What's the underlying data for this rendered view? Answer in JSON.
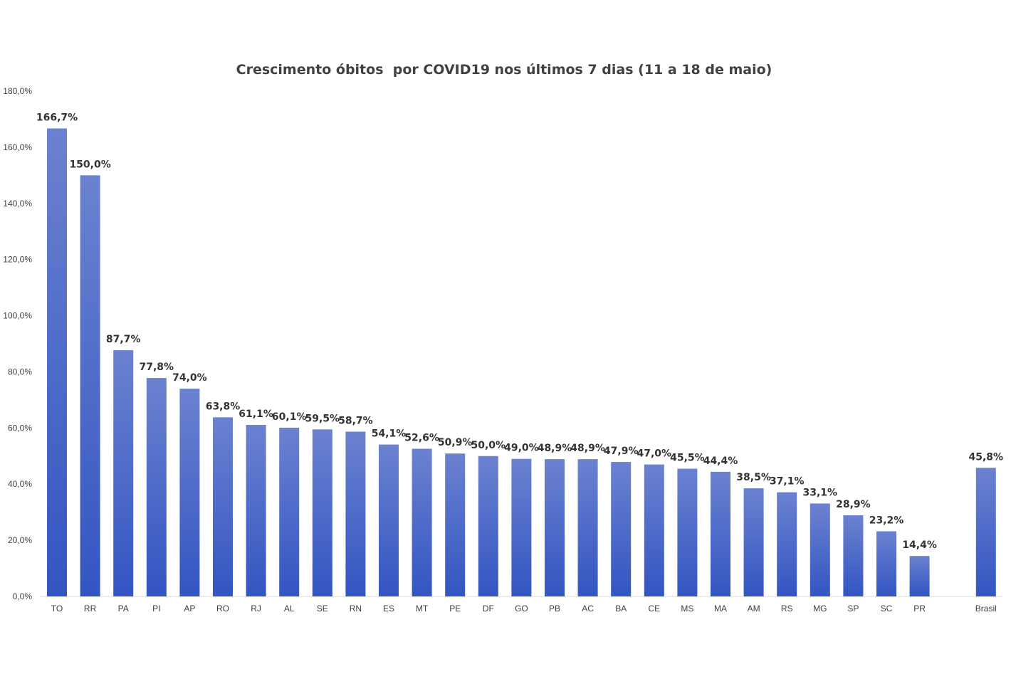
{
  "chart_data": {
    "type": "bar",
    "title": "Crescimento óbitos  por COVID19 nos últimos 7 dias (11 a 18 de maio)",
    "xlabel": "",
    "ylabel": "",
    "ylim": [
      0,
      180
    ],
    "yticks": [
      "0,0%",
      "20,0%",
      "40,0%",
      "60,0%",
      "80,0%",
      "100,0%",
      "120,0%",
      "140,0%",
      "160,0%",
      "180,0%"
    ],
    "grid": false,
    "legend": "none",
    "bar_color_top": "#6b82d0",
    "bar_color_bottom": "#3355c2",
    "categories": [
      "TO",
      "RR",
      "PA",
      "PI",
      "AP",
      "RO",
      "RJ",
      "AL",
      "SE",
      "RN",
      "ES",
      "MT",
      "PE",
      "DF",
      "GO",
      "PB",
      "AC",
      "BA",
      "CE",
      "MS",
      "MA",
      "AM",
      "RS",
      "MG",
      "SP",
      "SC",
      "PR",
      "Brasil"
    ],
    "values": [
      166.7,
      150.0,
      87.7,
      77.8,
      74.0,
      63.8,
      61.1,
      60.1,
      59.5,
      58.7,
      54.1,
      52.6,
      50.9,
      50.0,
      49.0,
      48.9,
      48.9,
      47.9,
      47.0,
      45.5,
      44.4,
      38.5,
      37.1,
      33.1,
      28.9,
      23.2,
      14.4,
      45.8
    ],
    "data_labels": [
      "166,7%",
      "150,0%",
      "87,7%",
      "77,8%",
      "74,0%",
      "63,8%",
      "61,1%",
      "60,1%",
      "59,5%",
      "58,7%",
      "54,1%",
      "52,6%",
      "50,9%",
      "50,0%",
      "49,0%",
      "48,9%",
      "48,9%",
      "47,9%",
      "47,0%",
      "45,5%",
      "44,4%",
      "38,5%",
      "37,1%",
      "33,1%",
      "28,9%",
      "23,2%",
      "14,4%",
      "45,8%"
    ]
  }
}
